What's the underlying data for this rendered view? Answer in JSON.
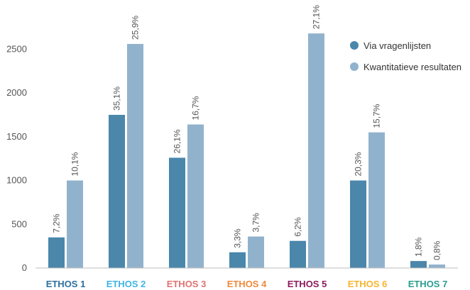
{
  "chart_data": {
    "type": "bar",
    "categories": [
      "ETHOS 1",
      "ETHOS 2",
      "ETHOS 3",
      "ETHOS 4",
      "ETHOS 5",
      "ETHOS 6",
      "ETHOS 7"
    ],
    "category_colors": [
      "#2e6f9e",
      "#3fb4e4",
      "#e07272",
      "#f08a3c",
      "#8e1a5e",
      "#f5b52e",
      "#2a9d8f"
    ],
    "series": [
      {
        "name": "Via vragenlijsten",
        "color": "#4a87ab",
        "values": [
          350,
          1750,
          1260,
          180,
          310,
          1000,
          80
        ],
        "labels": [
          "7,2%",
          "35,1%",
          "26,1%",
          "3,3%",
          "6,2%",
          "20,3%",
          "1,8%"
        ]
      },
      {
        "name": "Kwantitatieve resultaten",
        "color": "#91b2cd",
        "values": [
          1000,
          2560,
          1640,
          360,
          2680,
          1550,
          40
        ],
        "labels": [
          "10,1%",
          "25,9%",
          "16,7%",
          "3,7%",
          "27,1%",
          "15,7%",
          "0,8%"
        ]
      }
    ],
    "yticks": [
      "0",
      "500",
      "1000",
      "1500",
      "2000",
      "2500"
    ],
    "ylim": [
      0,
      2900
    ],
    "grid": false,
    "legend_position": "top-right"
  }
}
